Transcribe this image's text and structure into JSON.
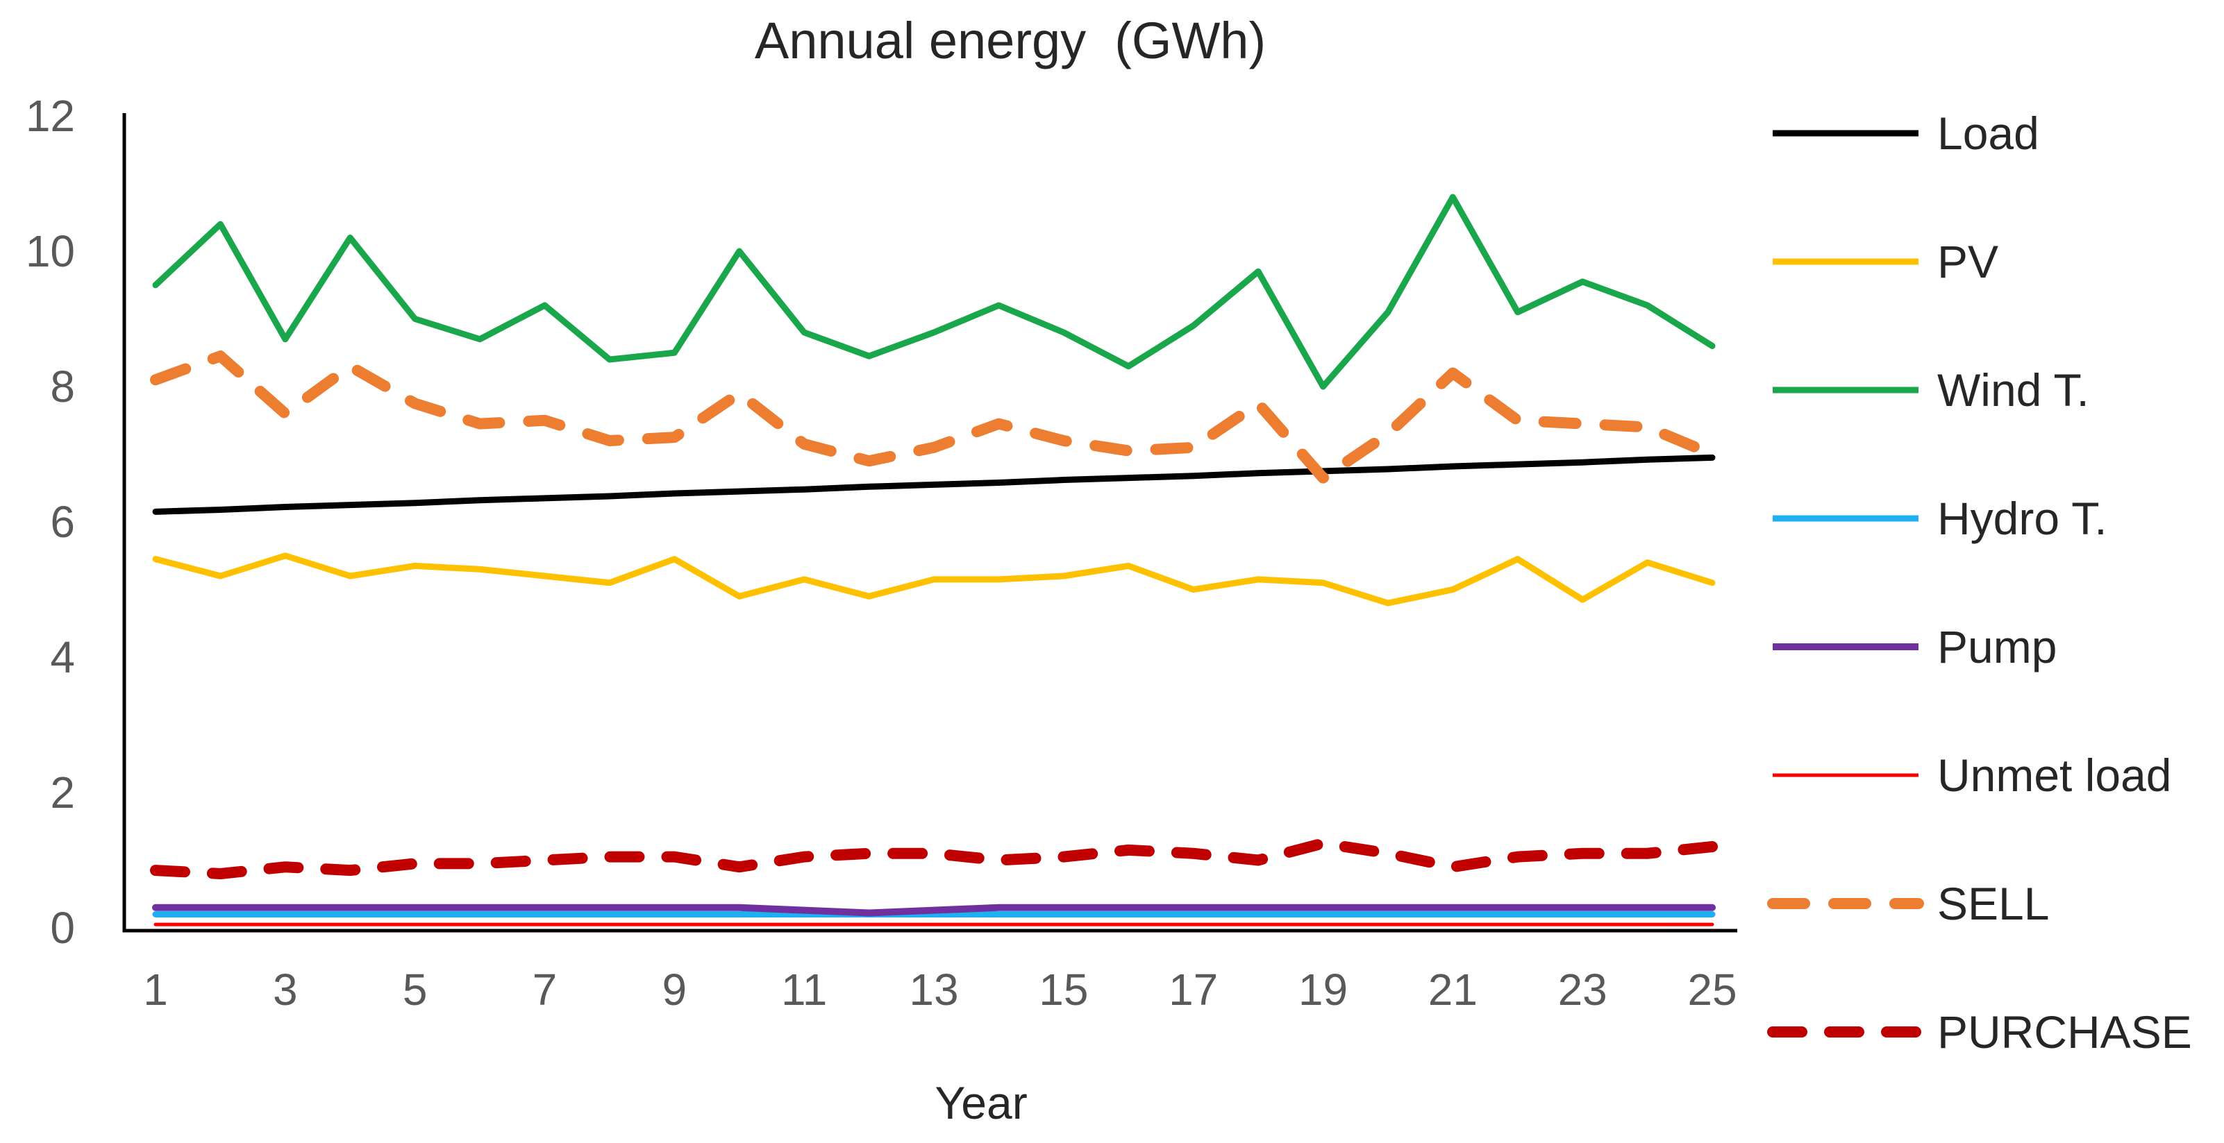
{
  "chart_data": {
    "type": "line",
    "title": "Annual energy  (GWh)",
    "xlabel": "Year",
    "ylabel": "",
    "x": [
      1,
      2,
      3,
      4,
      5,
      6,
      7,
      8,
      9,
      10,
      11,
      12,
      13,
      14,
      15,
      16,
      17,
      18,
      19,
      20,
      21,
      22,
      23,
      24,
      25
    ],
    "xticks": [
      1,
      3,
      5,
      7,
      9,
      11,
      13,
      15,
      17,
      19,
      21,
      23,
      25
    ],
    "yticks": [
      0,
      2,
      4,
      6,
      8,
      10,
      12
    ],
    "xlim": [
      1,
      25
    ],
    "ylim": [
      0,
      12
    ],
    "grid": false,
    "legend_position": "right",
    "axis_color": "#000000",
    "tick_label_color": "#595959",
    "series": [
      {
        "name": "Load",
        "color": "#000000",
        "style": "solid",
        "width": 9,
        "dash": "",
        "values": [
          6.15,
          6.18,
          6.22,
          6.25,
          6.28,
          6.32,
          6.35,
          6.38,
          6.42,
          6.45,
          6.48,
          6.52,
          6.55,
          6.58,
          6.62,
          6.65,
          6.68,
          6.72,
          6.75,
          6.78,
          6.82,
          6.85,
          6.88,
          6.92,
          6.95
        ]
      },
      {
        "name": "PV",
        "color": "#FFC000",
        "style": "solid",
        "width": 9,
        "dash": "",
        "values": [
          5.45,
          5.2,
          5.5,
          5.2,
          5.35,
          5.3,
          5.2,
          5.1,
          5.45,
          4.9,
          5.15,
          4.9,
          5.15,
          5.15,
          5.2,
          5.35,
          5.0,
          5.15,
          5.1,
          4.8,
          5.0,
          5.45,
          4.85,
          5.4,
          5.1
        ]
      },
      {
        "name": "Wind T.",
        "color": "#1AA64B",
        "style": "solid",
        "width": 9,
        "dash": "",
        "values": [
          9.5,
          10.4,
          8.7,
          10.2,
          9.0,
          8.7,
          9.2,
          8.4,
          8.5,
          10.0,
          8.8,
          8.45,
          8.8,
          9.2,
          8.8,
          8.3,
          8.9,
          9.7,
          8.0,
          9.1,
          10.8,
          9.1,
          9.55,
          9.2,
          8.6
        ]
      },
      {
        "name": "Hydro T.",
        "color": "#1EB0F0",
        "style": "solid",
        "width": 9,
        "dash": "",
        "values": [
          0.2,
          0.2,
          0.2,
          0.2,
          0.2,
          0.2,
          0.2,
          0.2,
          0.2,
          0.2,
          0.2,
          0.2,
          0.2,
          0.2,
          0.2,
          0.2,
          0.2,
          0.2,
          0.2,
          0.2,
          0.2,
          0.2,
          0.2,
          0.2,
          0.2
        ]
      },
      {
        "name": "Pump",
        "color": "#7030A0",
        "style": "solid",
        "width": 10,
        "dash": "",
        "values": [
          0.3,
          0.3,
          0.3,
          0.3,
          0.3,
          0.3,
          0.3,
          0.3,
          0.3,
          0.3,
          0.26,
          0.22,
          0.26,
          0.3,
          0.3,
          0.3,
          0.3,
          0.3,
          0.3,
          0.3,
          0.3,
          0.3,
          0.3,
          0.3,
          0.3
        ]
      },
      {
        "name": "Unmet load",
        "color": "#FF0000",
        "style": "solid",
        "width": 5,
        "dash": "",
        "values": [
          0.05,
          0.05,
          0.05,
          0.05,
          0.05,
          0.05,
          0.05,
          0.05,
          0.05,
          0.05,
          0.05,
          0.05,
          0.05,
          0.05,
          0.05,
          0.05,
          0.05,
          0.05,
          0.05,
          0.05,
          0.05,
          0.05,
          0.05,
          0.05,
          0.05
        ]
      },
      {
        "name": "SELL",
        "color": "#ED7D31",
        "style": "dashed",
        "width": 16,
        "dash": "46 42",
        "values": [
          8.1,
          8.45,
          7.6,
          8.3,
          7.75,
          7.45,
          7.5,
          7.2,
          7.25,
          7.9,
          7.15,
          6.9,
          7.1,
          7.45,
          7.2,
          7.05,
          7.1,
          7.75,
          6.65,
          7.3,
          8.2,
          7.5,
          7.45,
          7.4,
          7.0
        ]
      },
      {
        "name": "PURCHASE",
        "color": "#C00000",
        "style": "dashed",
        "width": 16,
        "dash": "42 40",
        "values": [
          0.85,
          0.8,
          0.9,
          0.85,
          0.95,
          0.95,
          1.0,
          1.05,
          1.05,
          0.9,
          1.05,
          1.1,
          1.1,
          1.0,
          1.05,
          1.15,
          1.1,
          1.0,
          1.25,
          1.1,
          0.9,
          1.05,
          1.1,
          1.1,
          1.2
        ]
      }
    ]
  }
}
